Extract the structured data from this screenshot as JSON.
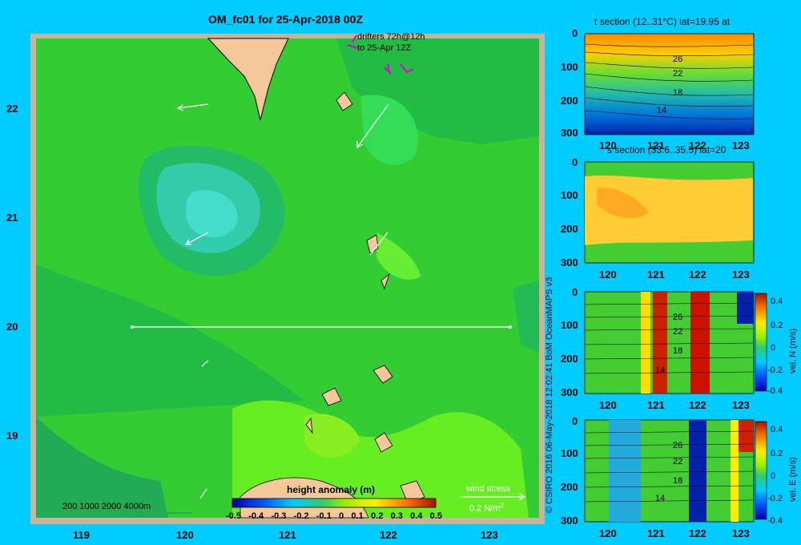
{
  "map": {
    "title": "OM_fc01 for 25-Apr-2018 00Z",
    "lat_ticks": [
      "22",
      "21",
      "20",
      "19"
    ],
    "lon_ticks": [
      "119",
      "120",
      "121",
      "122",
      "123"
    ],
    "drifters_line1": "drifters 72h@12h",
    "drifters_line2": "to 25-Apr 12Z",
    "bathy_legend": "200  1000  2000  4000m",
    "wind_stress_label": "wind stress",
    "wind_stress_scale": "0.2 N/m",
    "wind_stress_unit_sup": "2",
    "colorbar_title": "height anomaly (m)",
    "colorbar_ticks": [
      "-0.5",
      "-0.4",
      "-0.3",
      "-0.2",
      "-0.1",
      "0",
      "0.1",
      "0.2",
      "0.3",
      "0.4",
      "0.5"
    ]
  },
  "copyright": "© CSIRO 2016   06-May-2018 12:02:41 BoM OceanMAPS v3",
  "sections": [
    {
      "title": "t section (12..31°C) lat=19.95 at",
      "depth_ticks": [
        "0",
        "100",
        "200",
        "300"
      ],
      "lon_ticks": [
        "120",
        "121",
        "122",
        "123"
      ],
      "contour_labels": [
        "26",
        "22",
        "18",
        "14"
      ]
    },
    {
      "title": "s section (33.6..35.5) lat=20",
      "depth_ticks": [
        "0",
        "100",
        "200",
        "300"
      ],
      "lon_ticks": [
        "120",
        "121",
        "122",
        "123"
      ]
    },
    {
      "title": "",
      "depth_ticks": [
        "0",
        "100",
        "200",
        "300"
      ],
      "lon_ticks": [
        "120",
        "121",
        "122",
        "123"
      ],
      "contour_labels": [
        "26",
        "22",
        "18",
        "14"
      ],
      "cb_label": "vel. N (m/s)",
      "cb_ticks": [
        "0.4",
        "0.2",
        "0",
        "-0.2",
        "-0.4"
      ]
    },
    {
      "title": "",
      "depth_ticks": [
        "0",
        "100",
        "200",
        "300"
      ],
      "lon_ticks": [
        "120",
        "121",
        "122",
        "123"
      ],
      "contour_labels": [
        "26",
        "22",
        "18",
        "14"
      ],
      "cb_label": "vel. E (m/s)",
      "cb_ticks": [
        "0.4",
        "0.2",
        "0",
        "-0.2",
        "-0.4"
      ]
    }
  ],
  "colors": {
    "background": "#00ccff",
    "frame": "#c8b49a",
    "land": "#f5c89a",
    "ocean_main": "#33cc33"
  }
}
